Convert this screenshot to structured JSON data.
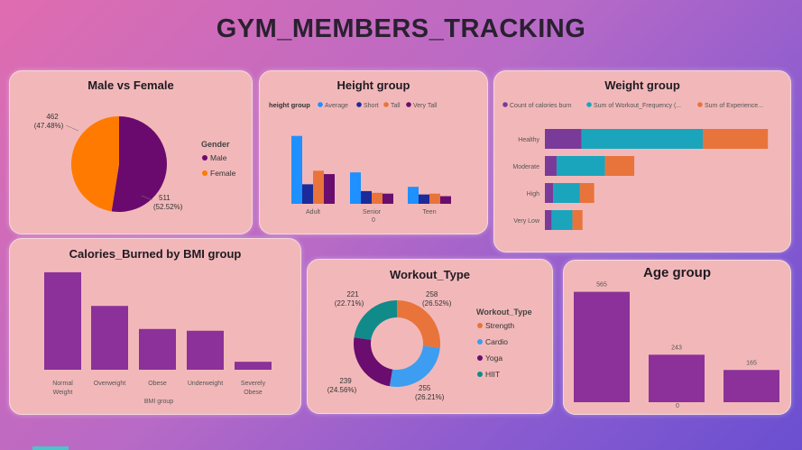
{
  "page_title": "GYM_MEMBERS_TRACKING",
  "colors": {
    "male": "#6b0a6e",
    "female": "#ff7a00",
    "average": "#1e90ff",
    "short": "#1c2a9a",
    "tall": "#e8743b",
    "very_tall": "#6a0d6e",
    "calories": "#7a3a9a",
    "frequency": "#1aa5bd",
    "experience": "#e8743b",
    "bmi_bar": "#8b3199",
    "strength": "#e8743b",
    "cardio": "#3d9df0",
    "yoga": "#6a0d6e",
    "hiit": "#118a8a",
    "age_bar": "#8b3199"
  },
  "chart_data": [
    {
      "id": "gender",
      "type": "pie",
      "title": "Male vs Female",
      "legend_title": "Gender",
      "legend_placement": "right",
      "slices": [
        {
          "name": "Male",
          "value": 511,
          "label": "511",
          "pct_label": "(52.52%)"
        },
        {
          "name": "Female",
          "value": 462,
          "label": "462",
          "pct_label": "(47.48%)"
        }
      ]
    },
    {
      "id": "height",
      "type": "bar",
      "title": "Height group",
      "legend_title": "height group",
      "legend_placement": "top-left",
      "categories": [
        "Adult",
        "Senior",
        "Teen"
      ],
      "series": [
        {
          "name": "Average",
          "values": [
            80,
            37,
            20
          ]
        },
        {
          "name": "Short",
          "values": [
            23,
            15,
            11
          ]
        },
        {
          "name": "Tall",
          "values": [
            39,
            13,
            12
          ]
        },
        {
          "name": "Very Tall",
          "values": [
            35,
            12,
            9
          ]
        }
      ],
      "ylim": [
        0,
        85
      ],
      "x_axis_note": "0"
    },
    {
      "id": "weight",
      "type": "bar",
      "orientation": "horizontal",
      "stacked": true,
      "title": "Weight group",
      "legend_placement": "top",
      "categories": [
        "Healthy",
        "Moderate",
        "High",
        "Very Low"
      ],
      "series": [
        {
          "name": "Count of calories burn",
          "values": [
            44,
            14,
            10,
            8
          ]
        },
        {
          "name": "Sum of Workout_Frequency (...",
          "values": [
            145,
            58,
            32,
            25
          ]
        },
        {
          "name": "Sum of Experience...",
          "values": [
            78,
            35,
            17,
            12
          ]
        }
      ],
      "xlim": [
        0,
        270
      ]
    },
    {
      "id": "bmi",
      "type": "bar",
      "title": "Calories_Burned by BMI group",
      "xlabel": "BMI group",
      "categories": [
        [
          "Normal",
          "Weight"
        ],
        [
          "Overweight"
        ],
        [
          "Obese"
        ],
        [
          "Underweight"
        ],
        [
          "Severely",
          "Obese"
        ]
      ],
      "values": [
        110,
        72,
        46,
        44,
        9
      ],
      "ylim": [
        0,
        115
      ]
    },
    {
      "id": "workout",
      "type": "pie",
      "donut": true,
      "title": "Workout_Type",
      "legend_title": "Workout_Type",
      "legend_placement": "right",
      "slices": [
        {
          "name": "Strength",
          "value": 258,
          "label": "258",
          "pct_label": "(26.52%)"
        },
        {
          "name": "Cardio",
          "value": 255,
          "label": "255",
          "pct_label": "(26.21%)"
        },
        {
          "name": "Yoga",
          "value": 239,
          "label": "239",
          "pct_label": "(24.56%)"
        },
        {
          "name": "HIIT",
          "value": 221,
          "label": "221",
          "pct_label": "(22.71%)"
        }
      ]
    },
    {
      "id": "age",
      "type": "bar",
      "title": "Age group",
      "categories": [
        "",
        "",
        ""
      ],
      "values": [
        565,
        243,
        165
      ],
      "data_labels": [
        "565",
        "243",
        "165"
      ],
      "ylim": [
        0,
        600
      ],
      "x_axis_note": "0"
    }
  ]
}
